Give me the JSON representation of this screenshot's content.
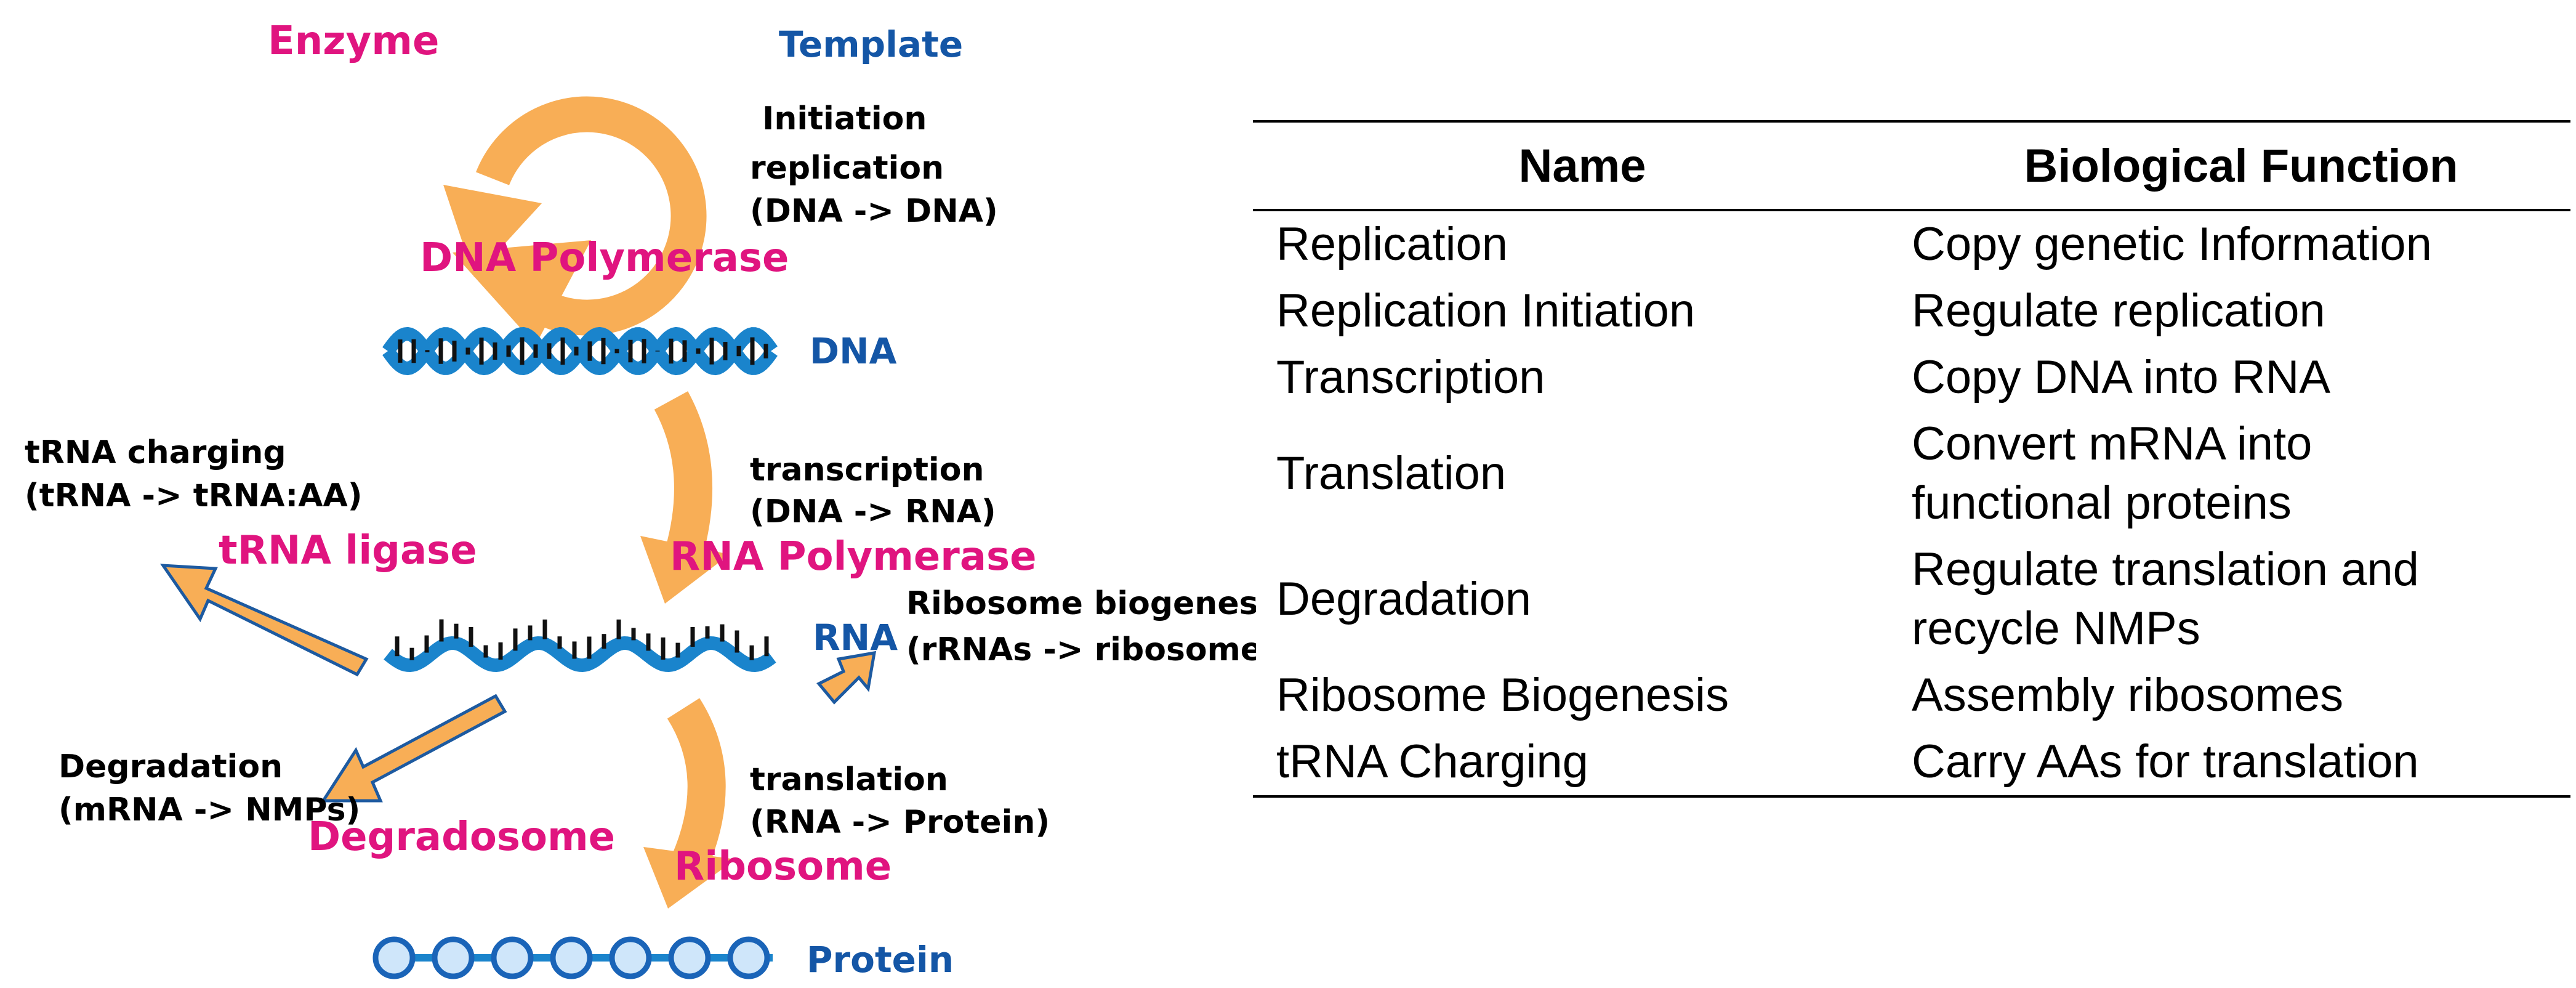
{
  "colors": {
    "enzyme": "#e0147f",
    "template": "#1456a6",
    "arrow": "#f8ae56",
    "arrow_border": "#1d5aa0",
    "strand": "#1a84cc"
  },
  "headers": {
    "enzyme": "Enzyme",
    "template": "Template"
  },
  "templates": {
    "dna": "DNA",
    "rna": "RNA",
    "protein": "Protein"
  },
  "enzymes": {
    "dna_polymerase": "DNA Polymerase",
    "rna_polymerase": "RNA Polymerase",
    "ribosome": "Ribosome",
    "trna_ligase": "tRNA ligase",
    "degradosome": "Degradosome"
  },
  "processes": {
    "initiation": "Initiation",
    "replication": {
      "name": "replication",
      "detail": "(DNA -> DNA)"
    },
    "transcription": {
      "name": "transcription",
      "detail": "(DNA -> RNA)"
    },
    "translation": {
      "name": "translation",
      "detail": "(RNA -> Protein)"
    },
    "trna_charging": {
      "name": "tRNA charging",
      "detail": "(tRNA -> tRNA:AA)"
    },
    "degradation": {
      "name": "Degradation",
      "detail": "(mRNA -> NMPs)"
    },
    "ribosome_biogenesis": {
      "name": "Ribosome biogenesis",
      "detail": "(rRNAs -> ribosome)"
    }
  },
  "table": {
    "columns": [
      "Name",
      "Biological Function"
    ],
    "rows": [
      {
        "name": "Replication",
        "function": [
          "Copy genetic Information"
        ]
      },
      {
        "name": "Replication Initiation",
        "function": [
          "Regulate replication"
        ]
      },
      {
        "name": "Transcription",
        "function": [
          "Copy DNA into RNA"
        ]
      },
      {
        "name": "Translation",
        "function": [
          "Convert mRNA into",
          "functional proteins"
        ]
      },
      {
        "name": "Degradation",
        "function": [
          "Regulate translation and",
          "recycle NMPs"
        ]
      },
      {
        "name": "Ribosome Biogenesis",
        "function": [
          "Assembly ribosomes"
        ]
      },
      {
        "name": "tRNA Charging",
        "function": [
          "Carry AAs for translation"
        ]
      }
    ]
  }
}
